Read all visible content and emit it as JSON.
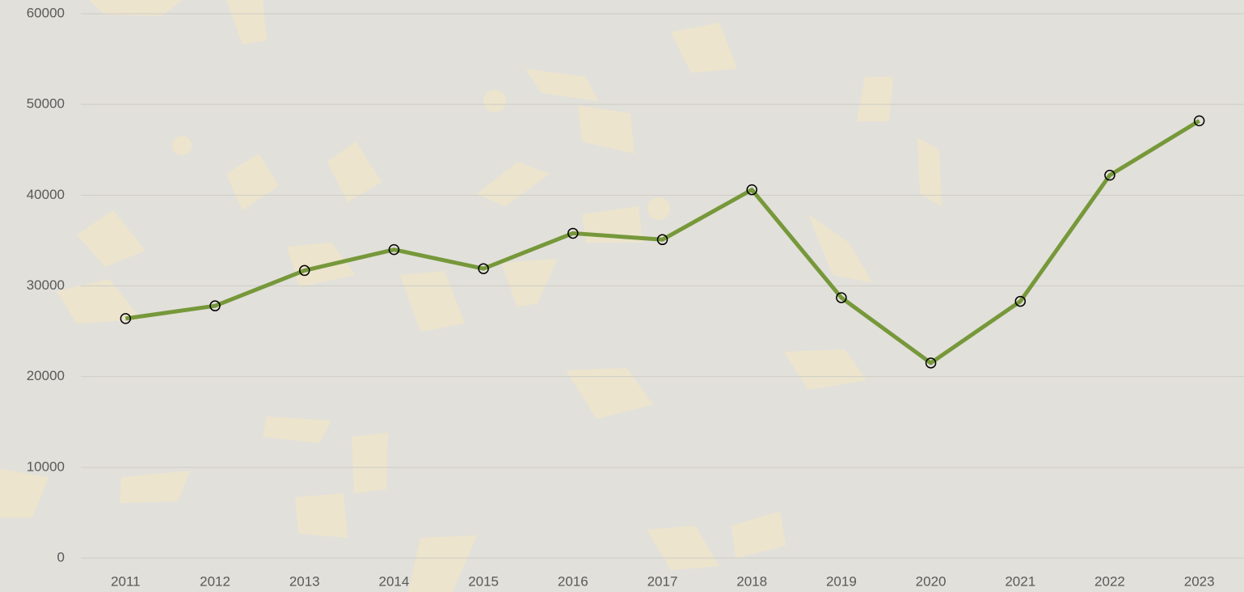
{
  "chart_data": {
    "type": "line",
    "categories": [
      "2011",
      "2012",
      "2013",
      "2014",
      "2015",
      "2016",
      "2017",
      "2018",
      "2019",
      "2020",
      "2021",
      "2022",
      "2023"
    ],
    "series": [
      {
        "color": "#76983a",
        "values": [
          26400,
          27800,
          31700,
          34000,
          31900,
          35800,
          35100,
          40600,
          28700,
          21500,
          28300,
          42200,
          48200
        ]
      }
    ],
    "ylim": [
      0,
      60000
    ],
    "yticks": [
      0,
      10000,
      20000,
      30000,
      40000,
      50000,
      60000
    ],
    "grid": true
  }
}
